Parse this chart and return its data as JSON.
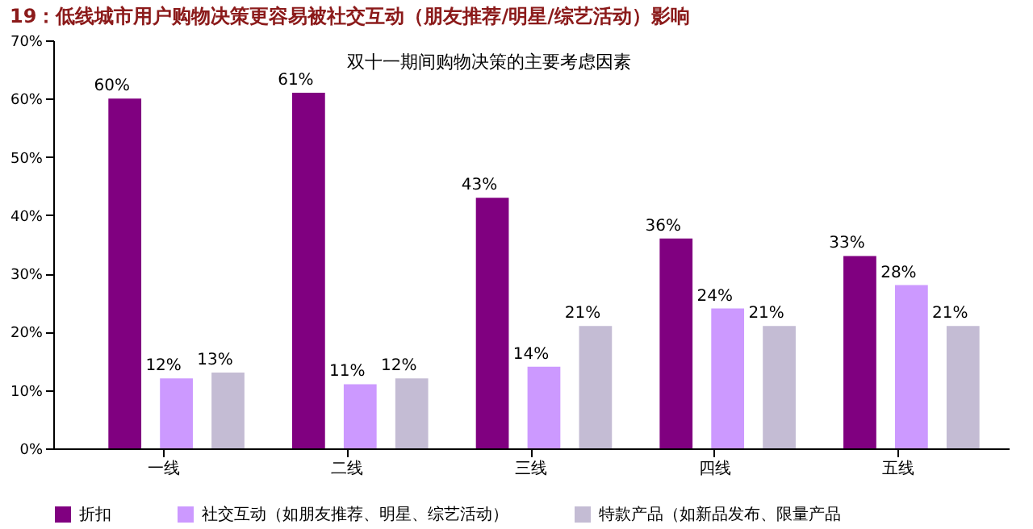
{
  "chart_data": {
    "type": "bar",
    "title": "19：低线城市用户购物决策更容易被社交互动（朋友推荐/明星/综艺活动）影响",
    "subtitle": "双十一期间购物决策的主要考虑因素",
    "categories": [
      "一线",
      "二线",
      "三线",
      "四线",
      "五线"
    ],
    "series": [
      {
        "name": "折扣",
        "color": "#800080",
        "values": [
          60,
          61,
          43,
          36,
          33
        ],
        "value_labels": [
          "60%",
          "61%",
          "43%",
          "36%",
          "33%"
        ]
      },
      {
        "name": "社交互动（如朋友推荐、明星、综艺活动）",
        "color": "#cc99ff",
        "values": [
          12,
          11,
          14,
          24,
          28
        ],
        "value_labels": [
          "12%",
          "11%",
          "14%",
          "24%",
          "28%"
        ]
      },
      {
        "name": "特款产品（如新品发布、限量产品",
        "color": "#c4bcd4",
        "values": [
          13,
          12,
          21,
          21,
          21
        ],
        "value_labels": [
          "13%",
          "12%",
          "21%",
          "21%",
          "21%"
        ]
      }
    ],
    "ylim": [
      0,
      70
    ],
    "yticks": [
      {
        "value": 0,
        "label": "0%"
      },
      {
        "value": 10,
        "label": "10%"
      },
      {
        "value": 20,
        "label": "20%"
      },
      {
        "value": 30,
        "label": "30%"
      },
      {
        "value": 40,
        "label": "40%"
      },
      {
        "value": 50,
        "label": "50%"
      },
      {
        "value": 60,
        "label": "60%"
      },
      {
        "value": 70,
        "label": "70%"
      }
    ],
    "grid": false,
    "legend": "bottom"
  }
}
